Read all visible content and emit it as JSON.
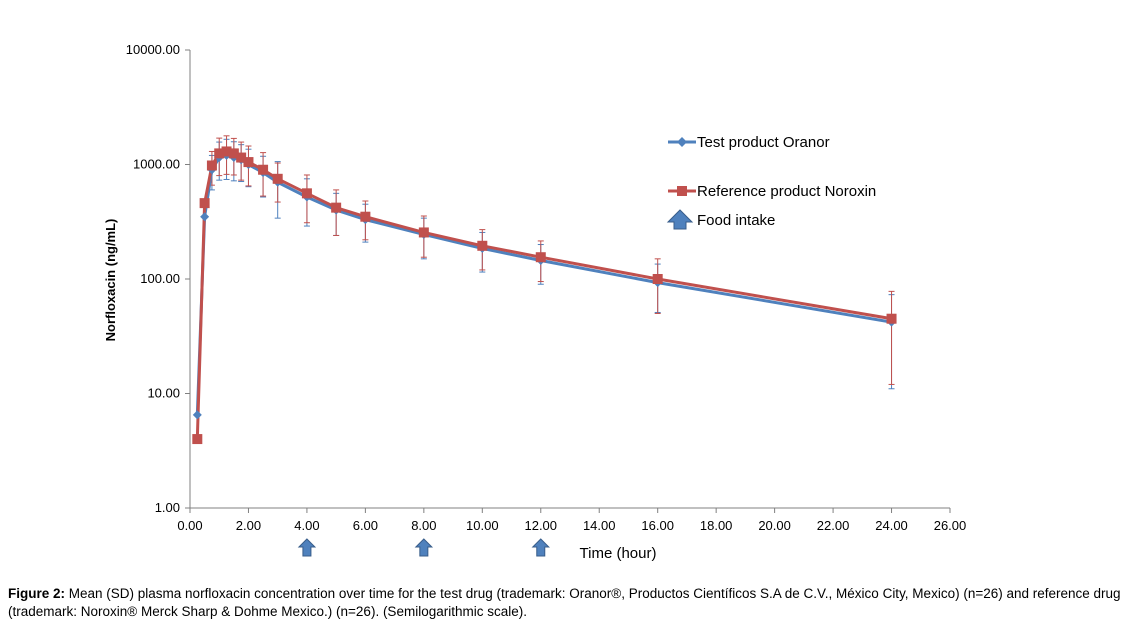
{
  "chart_data": {
    "type": "line",
    "yscale": "log",
    "xlabel": "Time (hour)",
    "ylabel": "Norfloxacin (ng/mL)",
    "xlim": [
      0,
      26
    ],
    "ylim": [
      1,
      10000
    ],
    "x_ticks": [
      "0.00",
      "2.00",
      "4.00",
      "6.00",
      "8.00",
      "10.00",
      "12.00",
      "14.00",
      "16.00",
      "18.00",
      "20.00",
      "22.00",
      "24.00",
      "26.00"
    ],
    "y_ticks": [
      "1.00",
      "10.00",
      "100.00",
      "1000.00",
      "10000.00"
    ],
    "series": [
      {
        "name": "Test product Oranor",
        "color": "#4F81BD",
        "marker": "diamond",
        "x": [
          0.25,
          0.5,
          0.75,
          1,
          1.25,
          1.5,
          1.75,
          2,
          2.5,
          3,
          4,
          5,
          6,
          8,
          10,
          12,
          16,
          24
        ],
        "y": [
          6.5,
          350,
          900,
          1150,
          1200,
          1150,
          1100,
          1000,
          850,
          700,
          520,
          400,
          330,
          245,
          185,
          145,
          93,
          42
        ],
        "err": [
          0,
          0,
          300,
          420,
          460,
          430,
          390,
          360,
          330,
          360,
          230,
          160,
          120,
          95,
          70,
          55,
          42,
          31
        ]
      },
      {
        "name": "Reference product Noroxin",
        "color": "#C0504D",
        "marker": "square",
        "x": [
          0.25,
          0.5,
          0.75,
          1,
          1.25,
          1.5,
          1.75,
          2,
          2.5,
          3,
          4,
          5,
          6,
          8,
          10,
          12,
          16,
          24
        ],
        "y": [
          4,
          460,
          980,
          1250,
          1300,
          1250,
          1150,
          1050,
          900,
          750,
          560,
          420,
          350,
          255,
          195,
          155,
          100,
          45
        ],
        "err": [
          0,
          0,
          320,
          450,
          480,
          440,
          420,
          400,
          370,
          280,
          250,
          180,
          130,
          100,
          75,
          60,
          50,
          33
        ]
      }
    ],
    "annotations": {
      "food_intake_label": "Food intake",
      "food_intake_times": [
        4,
        8,
        12
      ]
    }
  },
  "caption": {
    "label": "Figure 2:",
    "text": " Mean (SD) plasma norfloxacin concentration over time for the test drug (trademark: Oranor®, Productos Científicos S.A de C.V., México City, Mexico) (n=26) and reference drug (trademark: Noroxin® Merck Sharp & Dohme Mexico.) (n=26). (Semilogarithmic scale)."
  },
  "colors": {
    "axis": "#808080",
    "arrow": "#4F81BD"
  }
}
